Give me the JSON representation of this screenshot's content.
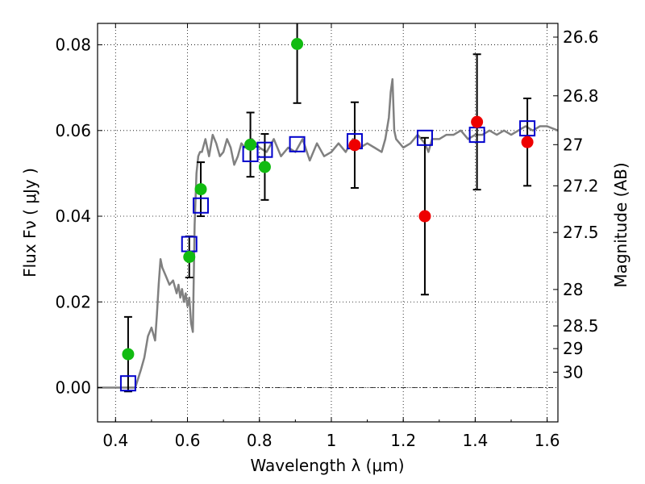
{
  "chart_data": {
    "type": "scatter",
    "xlabel": "Wavelength  λ (μm)",
    "ylabel": "Flux  Fν  ( μJy )",
    "y2label": "Magnitude (AB)",
    "xlim": [
      0.35,
      1.63
    ],
    "ylim": [
      -0.008,
      0.085
    ],
    "xticks": [
      0.4,
      0.6,
      0.8,
      1.0,
      1.2,
      1.4,
      1.6
    ],
    "xtick_labels": [
      "0.4",
      "0.6",
      "0.8",
      "1",
      "1.2",
      "1.4",
      "1.6"
    ],
    "yticks": [
      0.0,
      0.02,
      0.04,
      0.06,
      0.08
    ],
    "ytick_labels": [
      "0.00",
      "0.02",
      "0.04",
      "0.06",
      "0.08"
    ],
    "y2ticks": [
      {
        "label": "26.6",
        "flux": 0.0818
      },
      {
        "label": "26.8",
        "flux": 0.0681
      },
      {
        "label": "27",
        "flux": 0.0567
      },
      {
        "label": "27.2",
        "flux": 0.0471
      },
      {
        "label": "27.5",
        "flux": 0.0362
      },
      {
        "label": "28",
        "flux": 0.0229
      },
      {
        "label": "28.5",
        "flux": 0.0144
      },
      {
        "label": "29",
        "flux": 0.0091
      },
      {
        "label": "30",
        "flux": 0.0036
      }
    ],
    "grid": true,
    "colors": {
      "spectrum": "#808080",
      "green": "#11bb11",
      "red": "#ee0000",
      "model": "#0000cc"
    },
    "spectrum": {
      "x": [
        0.35,
        0.42,
        0.44,
        0.455,
        0.47,
        0.48,
        0.49,
        0.5,
        0.51,
        0.515,
        0.52,
        0.525,
        0.53,
        0.54,
        0.55,
        0.56,
        0.57,
        0.575,
        0.58,
        0.585,
        0.59,
        0.595,
        0.6,
        0.605,
        0.61,
        0.615,
        0.62,
        0.625,
        0.63,
        0.635,
        0.64,
        0.65,
        0.66,
        0.67,
        0.68,
        0.69,
        0.7,
        0.71,
        0.72,
        0.73,
        0.74,
        0.75,
        0.76,
        0.78,
        0.8,
        0.82,
        0.84,
        0.86,
        0.88,
        0.9,
        0.92,
        0.94,
        0.96,
        0.98,
        1.0,
        1.02,
        1.04,
        1.06,
        1.08,
        1.1,
        1.12,
        1.14,
        1.15,
        1.16,
        1.165,
        1.17,
        1.175,
        1.18,
        1.2,
        1.22,
        1.24,
        1.26,
        1.27,
        1.28,
        1.3,
        1.32,
        1.34,
        1.36,
        1.38,
        1.4,
        1.42,
        1.44,
        1.46,
        1.48,
        1.5,
        1.52,
        1.54,
        1.56,
        1.58,
        1.6,
        1.63
      ],
      "y": [
        0.0,
        0.0,
        0.0,
        0.0,
        0.004,
        0.007,
        0.012,
        0.014,
        0.011,
        0.017,
        0.024,
        0.03,
        0.028,
        0.026,
        0.024,
        0.025,
        0.022,
        0.024,
        0.021,
        0.023,
        0.02,
        0.022,
        0.019,
        0.021,
        0.015,
        0.013,
        0.038,
        0.05,
        0.054,
        0.055,
        0.055,
        0.058,
        0.054,
        0.059,
        0.057,
        0.054,
        0.055,
        0.058,
        0.056,
        0.052,
        0.054,
        0.057,
        0.056,
        0.058,
        0.056,
        0.055,
        0.058,
        0.054,
        0.056,
        0.055,
        0.058,
        0.053,
        0.057,
        0.054,
        0.055,
        0.057,
        0.055,
        0.058,
        0.056,
        0.057,
        0.056,
        0.055,
        0.058,
        0.063,
        0.069,
        0.072,
        0.06,
        0.058,
        0.056,
        0.057,
        0.059,
        0.057,
        0.055,
        0.058,
        0.058,
        0.059,
        0.059,
        0.06,
        0.058,
        0.059,
        0.059,
        0.06,
        0.059,
        0.06,
        0.059,
        0.06,
        0.061,
        0.06,
        0.061,
        0.061,
        0.06
      ]
    },
    "model_points": {
      "x": [
        0.435,
        0.605,
        0.637,
        0.775,
        0.815,
        0.905,
        1.065,
        1.26,
        1.405,
        1.545
      ],
      "y": [
        0.001,
        0.0335,
        0.0425,
        0.0545,
        0.0555,
        0.0568,
        0.0575,
        0.0583,
        0.059,
        0.0605
      ]
    },
    "green_points": {
      "x": [
        0.435,
        0.605,
        0.637,
        0.775,
        0.815,
        0.905
      ],
      "y": [
        0.0078,
        0.0305,
        0.0463,
        0.0567,
        0.0515,
        0.0802
      ],
      "err": [
        0.0087,
        0.0048,
        0.0063,
        0.0075,
        0.0077,
        0.0138
      ]
    },
    "red_points": {
      "x": [
        1.065,
        1.26,
        1.405,
        1.545
      ],
      "y": [
        0.0566,
        0.04,
        0.062,
        0.0573
      ],
      "err": [
        0.01,
        0.0183,
        0.0158,
        0.0102
      ]
    }
  }
}
